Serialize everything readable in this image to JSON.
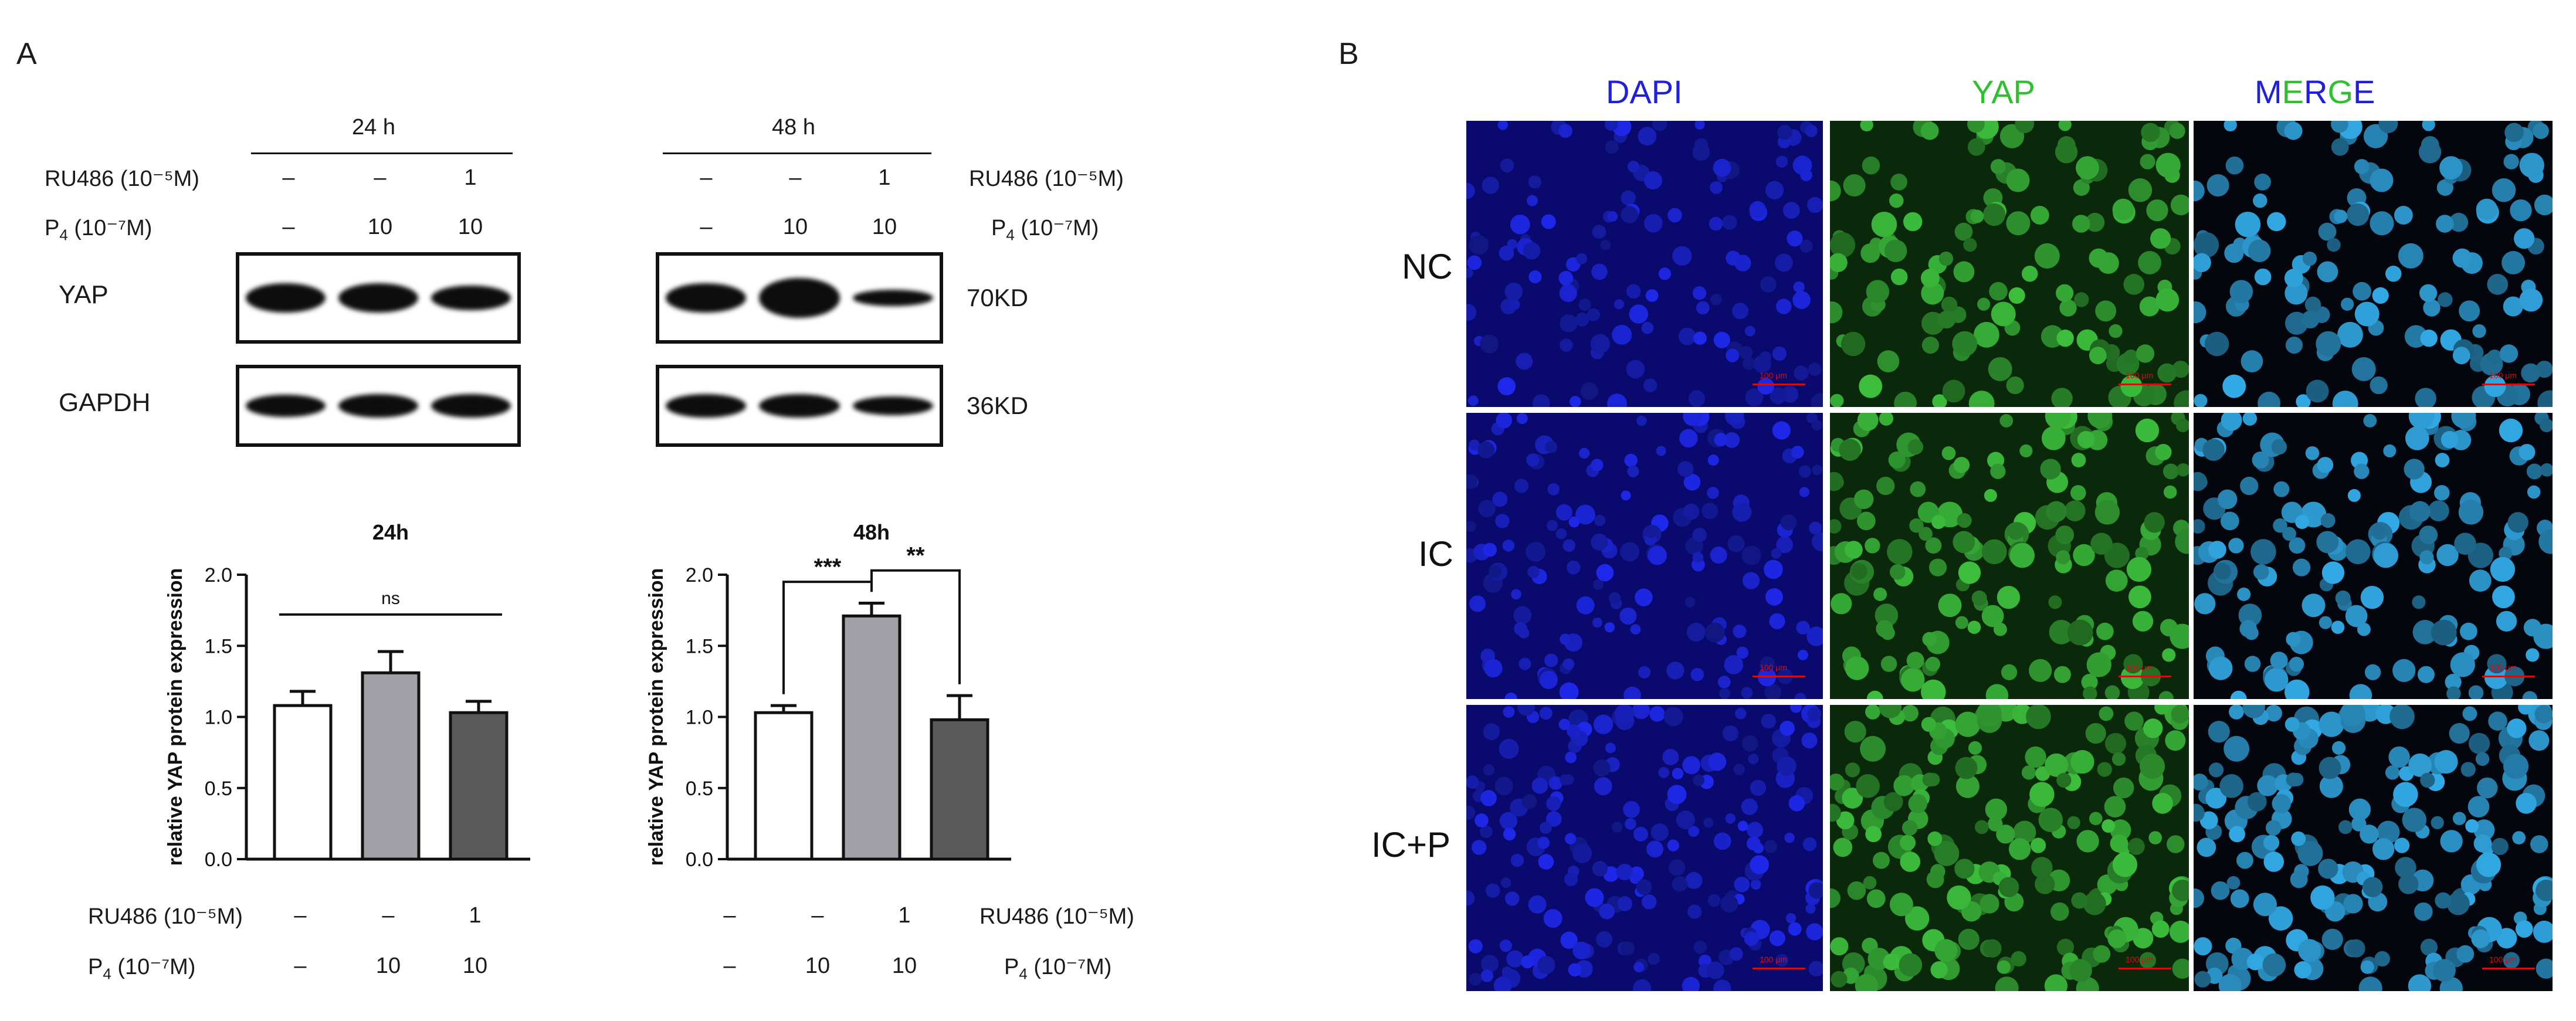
{
  "figure": {
    "panel_a_label": "A",
    "panel_b_label": "B",
    "western": {
      "group_24": "24 h",
      "group_48": "48 h",
      "ru486_label": "RU486 (10⁻⁵M)",
      "p4_label_prefix": "P",
      "p4_label_sub": "4",
      "p4_label_suffix": " (10⁻⁷M)",
      "ru486_values": [
        "–",
        "–",
        "1"
      ],
      "p4_values": [
        "–",
        "10",
        "10"
      ],
      "proteins": [
        "YAP",
        "GAPDH"
      ],
      "sizes": [
        "70KD",
        "36KD"
      ],
      "band_intensity_24h_yap": [
        1.0,
        1.0,
        0.85
      ],
      "band_intensity_48h_yap": [
        1.0,
        1.35,
        0.55
      ],
      "band_intensity_24h_gapdh": [
        0.95,
        1.0,
        1.0
      ],
      "band_intensity_48h_gapdh": [
        1.0,
        1.0,
        0.8
      ]
    },
    "treatment_rows": {
      "ru486_label": "RU486 (10⁻⁵M)",
      "p4_label_prefix": "P",
      "p4_label_sub": "4",
      "p4_label_suffix": " (10⁻⁷M)",
      "ru486_values": [
        "–",
        "–",
        "1"
      ],
      "p4_values": [
        "–",
        "10",
        "10"
      ]
    },
    "micrographs": {
      "columns": [
        "DAPI",
        "YAP",
        "MERGE"
      ],
      "merge_letters": [
        {
          "ch": "M",
          "color": "#1f1fe0"
        },
        {
          "ch": "E",
          "color": "#2fbf2f"
        },
        {
          "ch": "R",
          "color": "#1f1fe0"
        },
        {
          "ch": "G",
          "color": "#2fbf2f"
        },
        {
          "ch": "E",
          "color": "#1f1fe0"
        }
      ],
      "rows": [
        "NC",
        "IC",
        "IC+P"
      ],
      "scale_label": "100 μm",
      "colors": {
        "dapi": "#1f1fe0",
        "yap": "#2fbf2f"
      }
    }
  },
  "chart_data": [
    {
      "type": "bar",
      "title": "24h",
      "ylabel": "relative YAP protein expression",
      "xlabel": "",
      "ylim": [
        0,
        2.0
      ],
      "yticks": [
        "0.0",
        "0.5",
        "1.0",
        "1.5",
        "2.0"
      ],
      "categories": [
        "",
        "",
        ""
      ],
      "values": [
        1.08,
        1.31,
        1.03
      ],
      "errors": [
        0.1,
        0.15,
        0.08
      ],
      "bar_colors": [
        "#ffffff",
        "#a0a0a6",
        "#5a5a5a"
      ],
      "significance": [
        {
          "from": 0,
          "to": 2,
          "label": "ns"
        }
      ]
    },
    {
      "type": "bar",
      "title": "48h",
      "ylabel": "relative YAP protein expression",
      "xlabel": "",
      "ylim": [
        0,
        2.0
      ],
      "yticks": [
        "0.0",
        "0.5",
        "1.0",
        "1.5",
        "2.0"
      ],
      "categories": [
        "",
        "",
        ""
      ],
      "values": [
        1.03,
        1.71,
        0.98
      ],
      "errors": [
        0.05,
        0.09,
        0.17
      ],
      "bar_colors": [
        "#ffffff",
        "#a0a0a6",
        "#5a5a5a"
      ],
      "significance": [
        {
          "from": 0,
          "to": 1,
          "label": "***"
        },
        {
          "from": 1,
          "to": 2,
          "label": "**"
        }
      ]
    }
  ]
}
